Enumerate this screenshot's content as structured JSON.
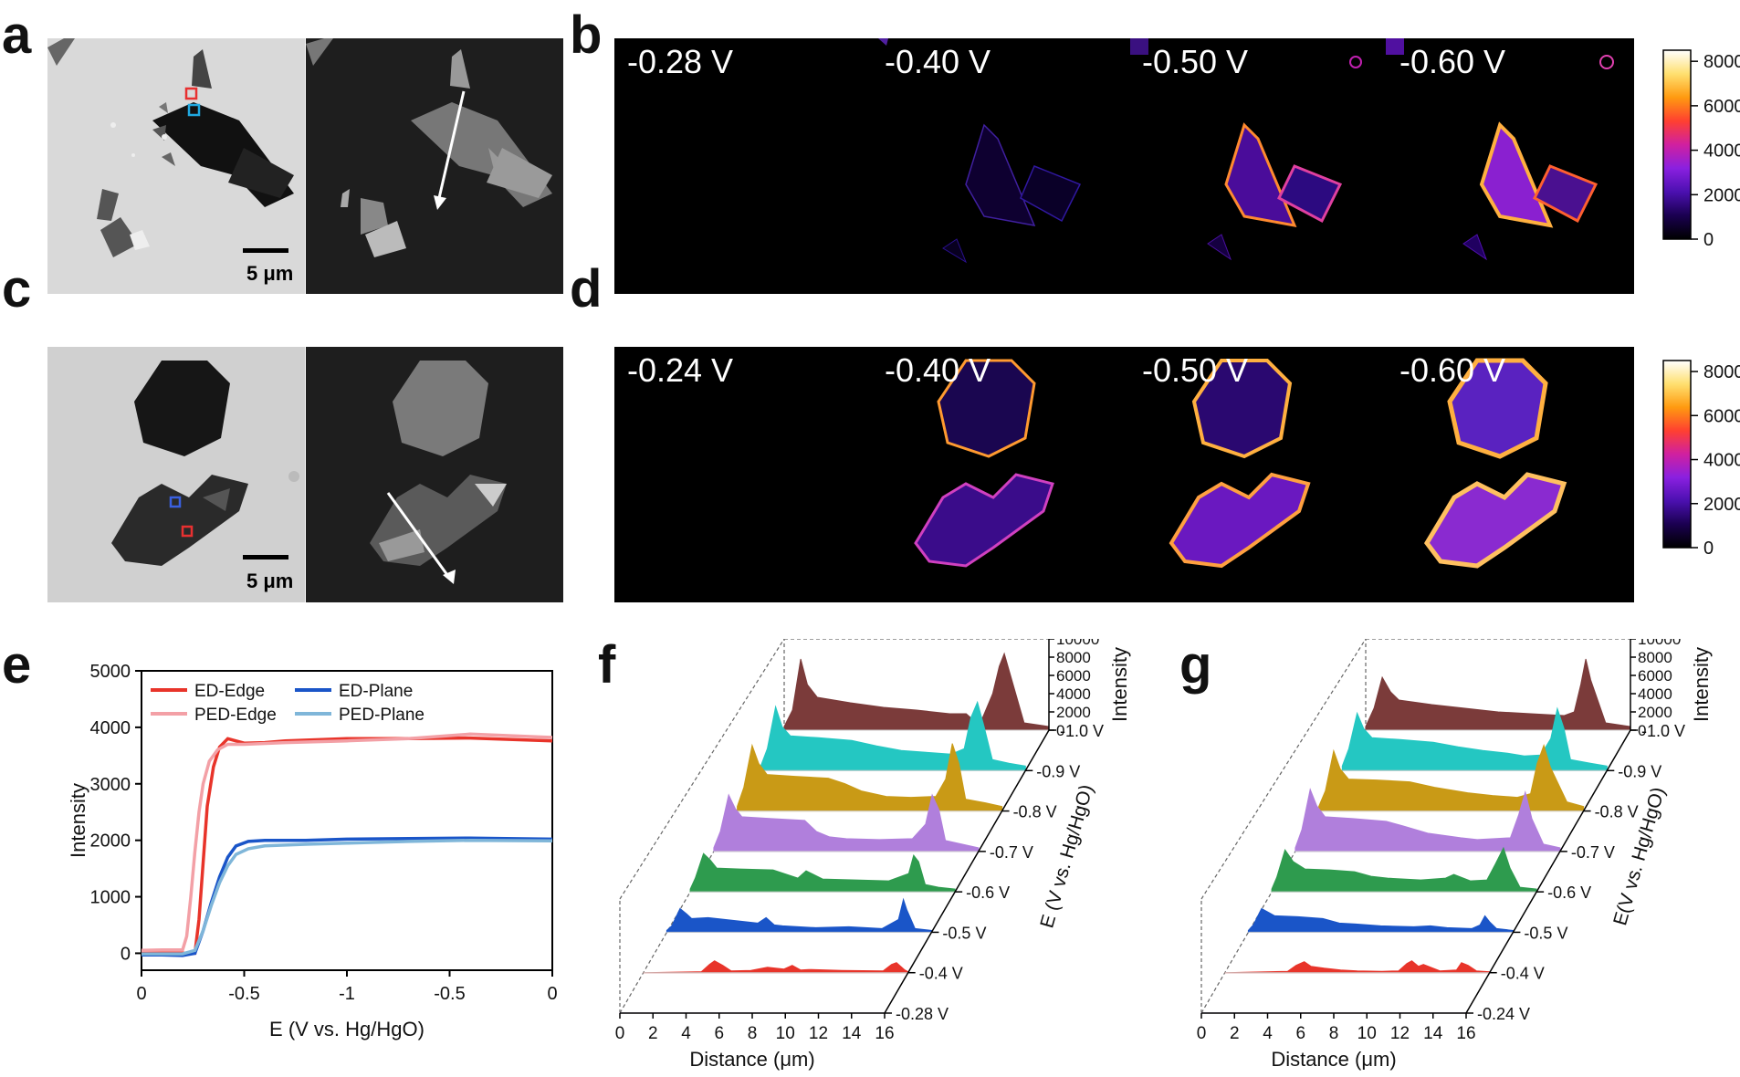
{
  "panels": {
    "a": "a",
    "b": "b",
    "c": "c",
    "d": "d",
    "e": "e",
    "f": "f",
    "g": "g"
  },
  "scale_bar": "5 μm",
  "b_potentials": [
    "-0.28 V",
    "-0.40 V",
    "-0.50 V",
    "-0.60 V"
  ],
  "d_potentials": [
    "-0.24 V",
    "-0.40 V",
    "-0.50 V",
    "-0.60 V"
  ],
  "colorbar": {
    "ticks": [
      "0",
      "2000",
      "4000",
      "6000",
      "8000"
    ],
    "max": 8500,
    "gradient": [
      "#000000",
      "#1a0050",
      "#4b10b0",
      "#8a20e0",
      "#d020a0",
      "#ff4030",
      "#ff9a10",
      "#ffe070",
      "#ffffff"
    ]
  },
  "chart_data": [
    {
      "id": "e",
      "type": "line",
      "xlabel": "E (V vs. Hg/HgO)",
      "ylabel": "Intensity",
      "xlim": [
        0,
        -1.0
      ],
      "ylim": [
        -300,
        5000
      ],
      "x_ticks": [
        "0",
        "-0.5",
        "-1",
        "-0.5",
        "0"
      ],
      "y_ticks": [
        0,
        1000,
        2000,
        3000,
        4000,
        5000
      ],
      "series": [
        {
          "name": "ED-Edge",
          "color": "#e8342a",
          "x": [
            0,
            0.1,
            0.2,
            0.26,
            0.28,
            0.3,
            0.32,
            0.35,
            0.38,
            0.42,
            0.5,
            0.6,
            0.7,
            1.0,
            1.3,
            1.6,
            2.0
          ],
          "y": [
            0,
            0,
            0,
            0,
            600,
            1600,
            2600,
            3300,
            3650,
            3800,
            3720,
            3730,
            3760,
            3800,
            3800,
            3810,
            3760
          ]
        },
        {
          "name": "PED-Edge",
          "color": "#f3a0a6",
          "x": [
            0,
            0.1,
            0.2,
            0.22,
            0.24,
            0.26,
            0.28,
            0.3,
            0.33,
            0.37,
            0.42,
            0.5,
            0.7,
            1.0,
            1.3,
            1.6,
            2.0
          ],
          "y": [
            50,
            60,
            60,
            300,
            1000,
            1800,
            2500,
            3000,
            3400,
            3600,
            3700,
            3700,
            3730,
            3760,
            3800,
            3880,
            3820
          ]
        },
        {
          "name": "ED-Plane",
          "color": "#1a55c8",
          "x": [
            0,
            0.1,
            0.2,
            0.26,
            0.3,
            0.34,
            0.38,
            0.42,
            0.46,
            0.52,
            0.6,
            0.8,
            1.0,
            1.3,
            1.6,
            2.0
          ],
          "y": [
            -30,
            -30,
            -40,
            0,
            400,
            900,
            1350,
            1700,
            1900,
            1980,
            2000,
            2000,
            2020,
            2030,
            2040,
            2020
          ]
        },
        {
          "name": "PED-Plane",
          "color": "#7fb6d9",
          "x": [
            0,
            0.1,
            0.2,
            0.26,
            0.3,
            0.34,
            0.38,
            0.42,
            0.46,
            0.52,
            0.6,
            0.8,
            1.0,
            1.3,
            1.6,
            2.0
          ],
          "y": [
            -10,
            -10,
            -10,
            50,
            400,
            850,
            1250,
            1550,
            1750,
            1850,
            1900,
            1930,
            1950,
            1980,
            2000,
            1990
          ]
        }
      ]
    },
    {
      "id": "f",
      "type": "area",
      "xlabel": "Distance (μm)",
      "zlabel": "Intensity",
      "ylabel": "E (V vs. Hg/HgO)",
      "xlim": [
        0,
        16
      ],
      "zlim": [
        0,
        10000
      ],
      "x_ticks": [
        0,
        2,
        4,
        6,
        8,
        10,
        12,
        14,
        16
      ],
      "z_ticks": [
        0,
        2000,
        4000,
        6000,
        8000,
        10000
      ],
      "series": [
        {
          "name": "-0.28 V",
          "color": "#b8a0c8",
          "x": [
            0,
            16
          ],
          "y": [
            30,
            30
          ]
        },
        {
          "name": "-0.4 V",
          "color": "#e8342a",
          "x": [
            0,
            3.5,
            4.0,
            4.3,
            4.8,
            5.3,
            6.5,
            7.5,
            8.5,
            9,
            9.5,
            10,
            12,
            14.5,
            15,
            15.3,
            15.8,
            16
          ],
          "y": [
            0,
            100,
            900,
            1300,
            800,
            200,
            250,
            600,
            400,
            800,
            300,
            350,
            250,
            200,
            900,
            1100,
            300,
            100
          ]
        },
        {
          "name": "-0.5 V",
          "color": "#1a55c8",
          "x": [
            0,
            0.3,
            0.8,
            1.2,
            1.5,
            2.5,
            4,
            5.5,
            6,
            6.5,
            7,
            9,
            11,
            13,
            14,
            14.3,
            14.5,
            15,
            16
          ],
          "y": [
            200,
            700,
            2600,
            2000,
            1500,
            1600,
            1300,
            1000,
            1600,
            800,
            700,
            500,
            600,
            400,
            1400,
            3600,
            2500,
            400,
            200
          ]
        },
        {
          "name": "-0.6 V",
          "color": "#2e9b4e",
          "x": [
            0,
            0.3,
            0.8,
            1.2,
            1.6,
            3,
            5,
            6.5,
            7,
            8,
            10,
            12,
            13.2,
            13.5,
            13.8,
            14.2,
            15,
            16
          ],
          "y": [
            300,
            1500,
            4200,
            3500,
            2600,
            2500,
            2400,
            1500,
            2300,
            1400,
            1300,
            1200,
            2000,
            4000,
            3300,
            800,
            500,
            300
          ]
        },
        {
          "name": "-0.7 V",
          "color": "#b07fdc",
          "x": [
            0,
            0.4,
            0.9,
            1.3,
            1.7,
            3.5,
            5.5,
            6.2,
            7,
            8,
            10,
            12,
            12.8,
            13.2,
            13.6,
            14,
            15,
            16
          ],
          "y": [
            400,
            2200,
            6200,
            4700,
            3800,
            3600,
            3400,
            2200,
            1600,
            1400,
            1300,
            1400,
            3000,
            6200,
            4600,
            1200,
            800,
            400
          ]
        },
        {
          "name": "-0.8 V",
          "color": "#c99a16",
          "x": [
            0,
            0.4,
            0.9,
            1.3,
            1.8,
            3.5,
            5.5,
            6.5,
            7.5,
            9,
            10.5,
            12,
            12.6,
            13,
            13.4,
            13.8,
            15,
            16
          ],
          "y": [
            500,
            2600,
            7200,
            5200,
            4000,
            3800,
            3600,
            3000,
            2200,
            1600,
            1500,
            1600,
            3500,
            7400,
            5200,
            1300,
            900,
            500
          ]
        },
        {
          "name": "-0.9 V",
          "color": "#24c7c2",
          "x": [
            0,
            0.4,
            0.9,
            1.3,
            1.8,
            3.5,
            5.5,
            7,
            8.5,
            10,
            11.5,
            12.3,
            12.7,
            13.1,
            13.5,
            14,
            15,
            16
          ],
          "y": [
            500,
            2400,
            7000,
            4800,
            3800,
            3600,
            3300,
            2700,
            2200,
            2000,
            1800,
            2400,
            5800,
            7500,
            4800,
            1200,
            800,
            500
          ]
        },
        {
          "name": "-1.0 V",
          "color": "#7b3b3a",
          "x": [
            0,
            0.5,
            1.0,
            1.4,
            2,
            4,
            6,
            8,
            10,
            11,
            11.5,
            12,
            12.6,
            13,
            13.3,
            13.6,
            14.5,
            16
          ],
          "y": [
            400,
            2200,
            7800,
            5000,
            3600,
            3000,
            2500,
            2200,
            1800,
            1800,
            1000,
            1400,
            4000,
            7000,
            8400,
            6500,
            800,
            400
          ]
        }
      ]
    },
    {
      "id": "g",
      "type": "area",
      "xlabel": "Distance (μm)",
      "zlabel": "Intensity",
      "ylabel": "E(V vs. Hg/HgO)",
      "xlim": [
        0,
        16
      ],
      "zlim": [
        0,
        10000
      ],
      "x_ticks": [
        0,
        2,
        4,
        6,
        8,
        10,
        12,
        14,
        16
      ],
      "z_ticks": [
        0,
        2000,
        4000,
        6000,
        8000,
        10000
      ],
      "series": [
        {
          "name": "-0.24 V",
          "color": "#b8a0c8",
          "x": [
            0,
            16
          ],
          "y": [
            30,
            30
          ]
        },
        {
          "name": "-0.4 V",
          "color": "#e8342a",
          "x": [
            0,
            3.8,
            4.3,
            4.8,
            5.2,
            6,
            7,
            8,
            9.5,
            10.5,
            11,
            11.3,
            11.7,
            12,
            13,
            14,
            14.3,
            14.7,
            15.2,
            16
          ],
          "y": [
            0,
            150,
            800,
            1200,
            700,
            500,
            300,
            200,
            150,
            200,
            1000,
            1300,
            700,
            900,
            200,
            300,
            1100,
            800,
            200,
            100
          ]
        },
        {
          "name": "-0.5 V",
          "color": "#1a55c8",
          "x": [
            0,
            0.3,
            0.8,
            1.2,
            1.6,
            3,
            4.5,
            5.5,
            6.5,
            8,
            10,
            11,
            12,
            13.5,
            14,
            14.3,
            14.6,
            15,
            16
          ],
          "y": [
            200,
            800,
            2600,
            2200,
            1800,
            1700,
            1500,
            1000,
            900,
            700,
            600,
            700,
            500,
            400,
            800,
            1800,
            1100,
            400,
            200
          ]
        },
        {
          "name": "-0.6 V",
          "color": "#2e9b4e",
          "x": [
            0,
            0.3,
            0.8,
            1.3,
            2,
            3.5,
            5,
            6,
            7,
            9,
            10.5,
            11,
            12,
            13,
            13.5,
            14,
            14.4,
            15,
            16
          ],
          "y": [
            300,
            1600,
            4600,
            3300,
            2500,
            2400,
            2200,
            1700,
            1500,
            1300,
            1500,
            1900,
            1200,
            1300,
            3000,
            4800,
            2600,
            500,
            300
          ]
        },
        {
          "name": "-0.7 V",
          "color": "#b07fdc",
          "x": [
            0,
            0.4,
            0.9,
            1.3,
            1.8,
            3.5,
            5.5,
            6.5,
            8,
            10,
            11,
            12,
            13,
            13.5,
            13.9,
            14.3,
            15,
            16
          ],
          "y": [
            400,
            2400,
            6800,
            5000,
            3800,
            3600,
            3300,
            2800,
            2000,
            1500,
            1300,
            1400,
            1500,
            4000,
            6500,
            3600,
            800,
            400
          ]
        },
        {
          "name": "-0.8 V",
          "color": "#c99a16",
          "x": [
            0,
            0.4,
            0.9,
            1.3,
            1.8,
            3.5,
            5.5,
            7,
            9,
            10.5,
            12,
            12.8,
            13.2,
            13.6,
            14,
            15,
            16
          ],
          "y": [
            500,
            2200,
            6600,
            4600,
            3500,
            3400,
            3200,
            2600,
            2000,
            1700,
            1500,
            1900,
            5200,
            7200,
            4800,
            1000,
            500
          ]
        },
        {
          "name": "-0.9 V",
          "color": "#24c7c2",
          "x": [
            0,
            0.4,
            0.9,
            1.3,
            1.8,
            3.5,
            5.5,
            7,
            8.5,
            10,
            11,
            12,
            12.6,
            13,
            13.4,
            13.8,
            15,
            16
          ],
          "y": [
            500,
            2400,
            6300,
            4600,
            3600,
            3400,
            3100,
            2600,
            2200,
            1900,
            1600,
            1700,
            3500,
            6800,
            4600,
            1200,
            800,
            500
          ]
        },
        {
          "name": "-1.0 V",
          "color": "#7b3b3a",
          "x": [
            0,
            0.5,
            1.0,
            1.5,
            2,
            4,
            6,
            8,
            10,
            11,
            12,
            12.6,
            13,
            13.3,
            13.6,
            14.5,
            16
          ],
          "y": [
            400,
            2400,
            5800,
            4200,
            3300,
            2800,
            2400,
            2000,
            1800,
            1700,
            1600,
            2000,
            5000,
            7800,
            5500,
            800,
            400
          ]
        }
      ]
    }
  ]
}
